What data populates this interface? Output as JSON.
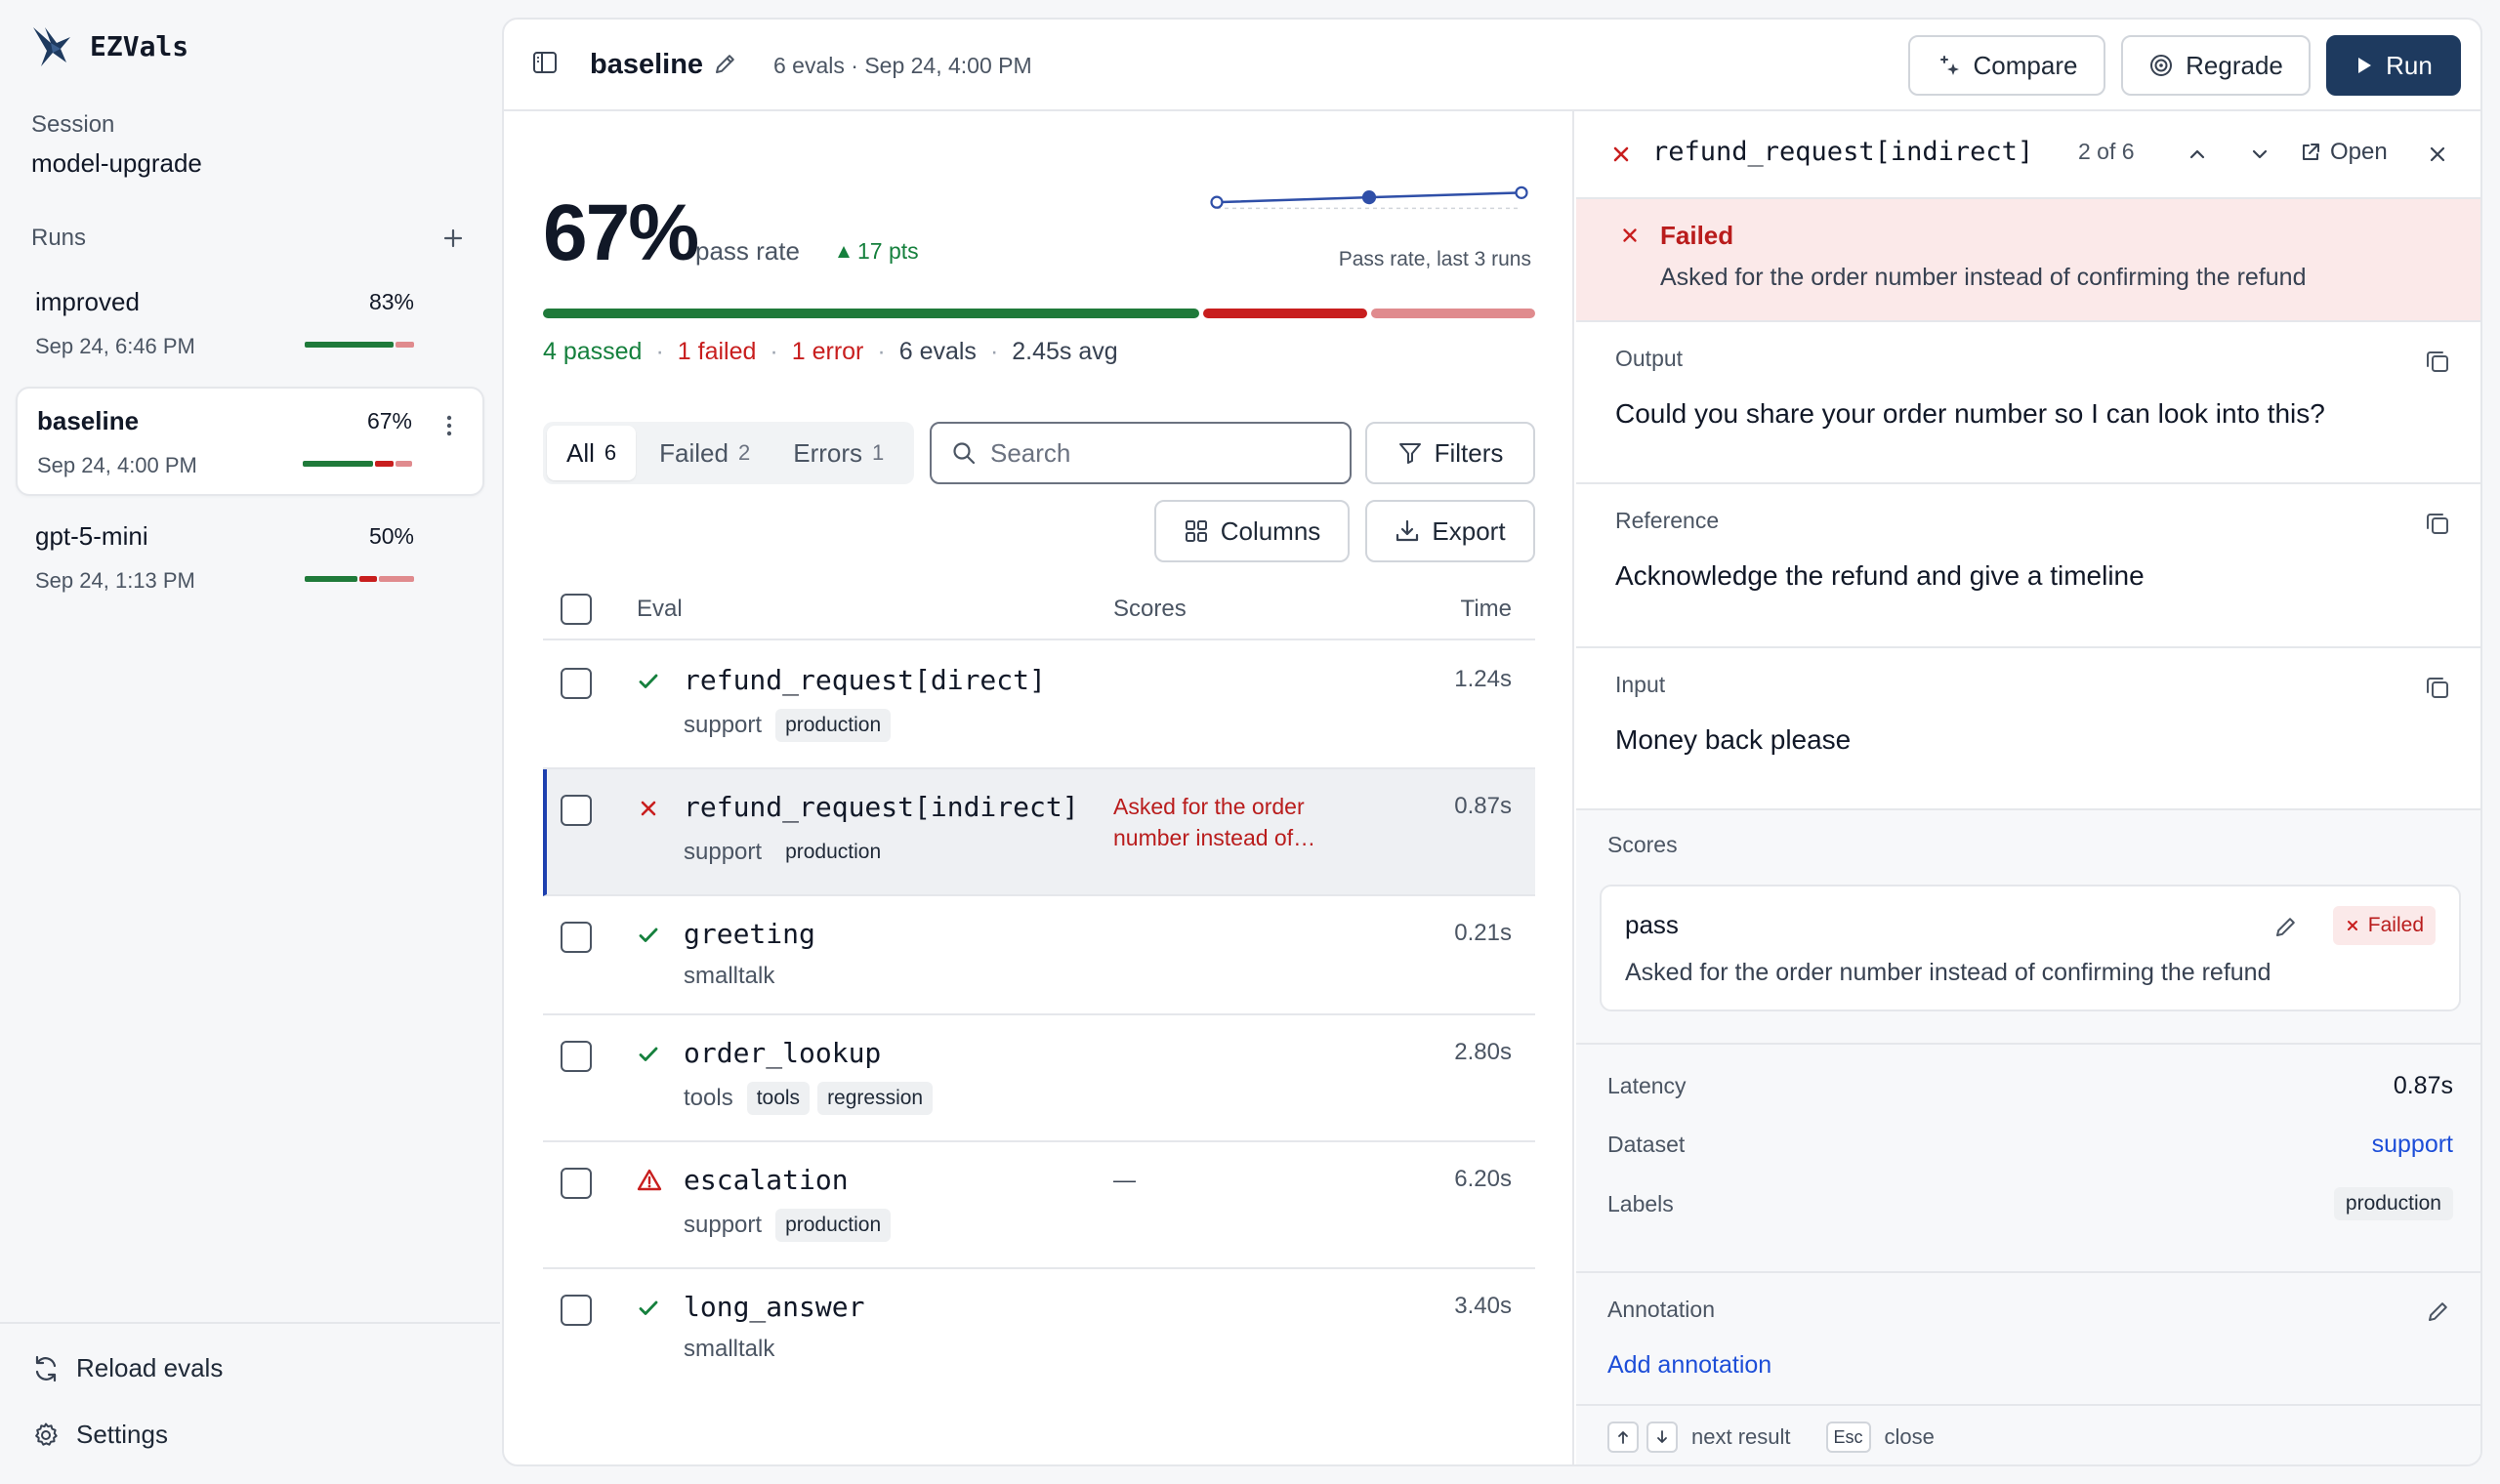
{
  "app": {
    "name": "EZVals"
  },
  "session": {
    "label": "Session",
    "name": "model-upgrade"
  },
  "runs": {
    "label": "Runs",
    "items": [
      {
        "name": "improved",
        "pct": "83%",
        "date": "Sep 24, 6:46 PM",
        "bar": [
          0.83,
          0.0,
          0.17
        ]
      },
      {
        "name": "baseline",
        "pct": "67%",
        "date": "Sep 24, 4:00 PM",
        "bar": [
          0.67,
          0.17,
          0.16
        ]
      },
      {
        "name": "gpt-5-mini",
        "pct": "50%",
        "date": "Sep 24, 1:13 PM",
        "bar": [
          0.5,
          0.17,
          0.33
        ]
      }
    ]
  },
  "sidebar_bottom": {
    "reload": "Reload evals",
    "settings": "Settings"
  },
  "topbar": {
    "title": "baseline",
    "meta": "6 evals · Sep 24, 4:00 PM",
    "compare": "Compare",
    "regrade": "Regrade",
    "run": "Run"
  },
  "stats": {
    "pass_rate": "67%",
    "pass_label": "pass rate",
    "delta": "17 pts",
    "spark_caption": "Pass rate, last 3 runs",
    "spark_values": [
      50,
      67,
      83
    ],
    "bar": {
      "passed": 4,
      "failed": 1,
      "error": 1
    },
    "passed": "4 passed",
    "failed": "1 failed",
    "error": "1 error",
    "evals": "6 evals",
    "avg": "2.45s avg"
  },
  "filters": {
    "tabs": [
      {
        "label": "All",
        "count": "6"
      },
      {
        "label": "Failed",
        "count": "2"
      },
      {
        "label": "Errors",
        "count": "1"
      }
    ],
    "search_placeholder": "Search",
    "filters_btn": "Filters",
    "columns_btn": "Columns",
    "export_btn": "Export"
  },
  "table": {
    "headers": {
      "eval": "Eval",
      "scores": "Scores",
      "time": "Time"
    },
    "rows": [
      {
        "name": "refund_request[direct]",
        "status": "pass",
        "dataset": "support",
        "labels": [
          "production"
        ],
        "score": "",
        "time": "1.24s"
      },
      {
        "name": "refund_request[indirect]",
        "status": "fail",
        "dataset": "support",
        "labels": [
          "production"
        ],
        "score": "Asked for the order number instead of…",
        "time": "0.87s"
      },
      {
        "name": "greeting",
        "status": "pass",
        "dataset": "smalltalk",
        "labels": [],
        "score": "",
        "time": "0.21s"
      },
      {
        "name": "order_lookup",
        "status": "pass",
        "dataset": "tools",
        "labels": [
          "tools",
          "regression"
        ],
        "score": "",
        "time": "2.80s"
      },
      {
        "name": "escalation",
        "status": "error",
        "dataset": "support",
        "labels": [
          "production"
        ],
        "score": "—",
        "time": "6.20s"
      },
      {
        "name": "long_answer",
        "status": "pass",
        "dataset": "smalltalk",
        "labels": [],
        "score": "",
        "time": "3.40s"
      }
    ]
  },
  "detail": {
    "title": "refund_request[indirect]",
    "position": "2 of 6",
    "open": "Open",
    "status_title": "Failed",
    "status_text": "Asked for the order number instead of confirming the refund",
    "output_label": "Output",
    "output": "Could you share your order number so I can look into this?",
    "reference_label": "Reference",
    "reference": "Acknowledge the refund and give a timeline",
    "input_label": "Input",
    "input": "Money back please",
    "scores_label": "Scores",
    "score": {
      "name": "pass",
      "badge": "Failed",
      "text": "Asked for the order number instead of confirming the refund"
    },
    "latency_label": "Latency",
    "latency": "0.87s",
    "dataset_label": "Dataset",
    "dataset": "support",
    "labels_label": "Labels",
    "labels": [
      "production"
    ],
    "annotation_label": "Annotation",
    "add_annotation": "Add annotation",
    "footer": {
      "next": "next result",
      "esc": "Esc",
      "close": "close"
    }
  },
  "colors": {
    "pass": "#1f7a3a",
    "fail": "#c81e1e",
    "error_light": "#e08b8e",
    "accent": "#1e3a5f",
    "link": "#1d4ed8"
  }
}
